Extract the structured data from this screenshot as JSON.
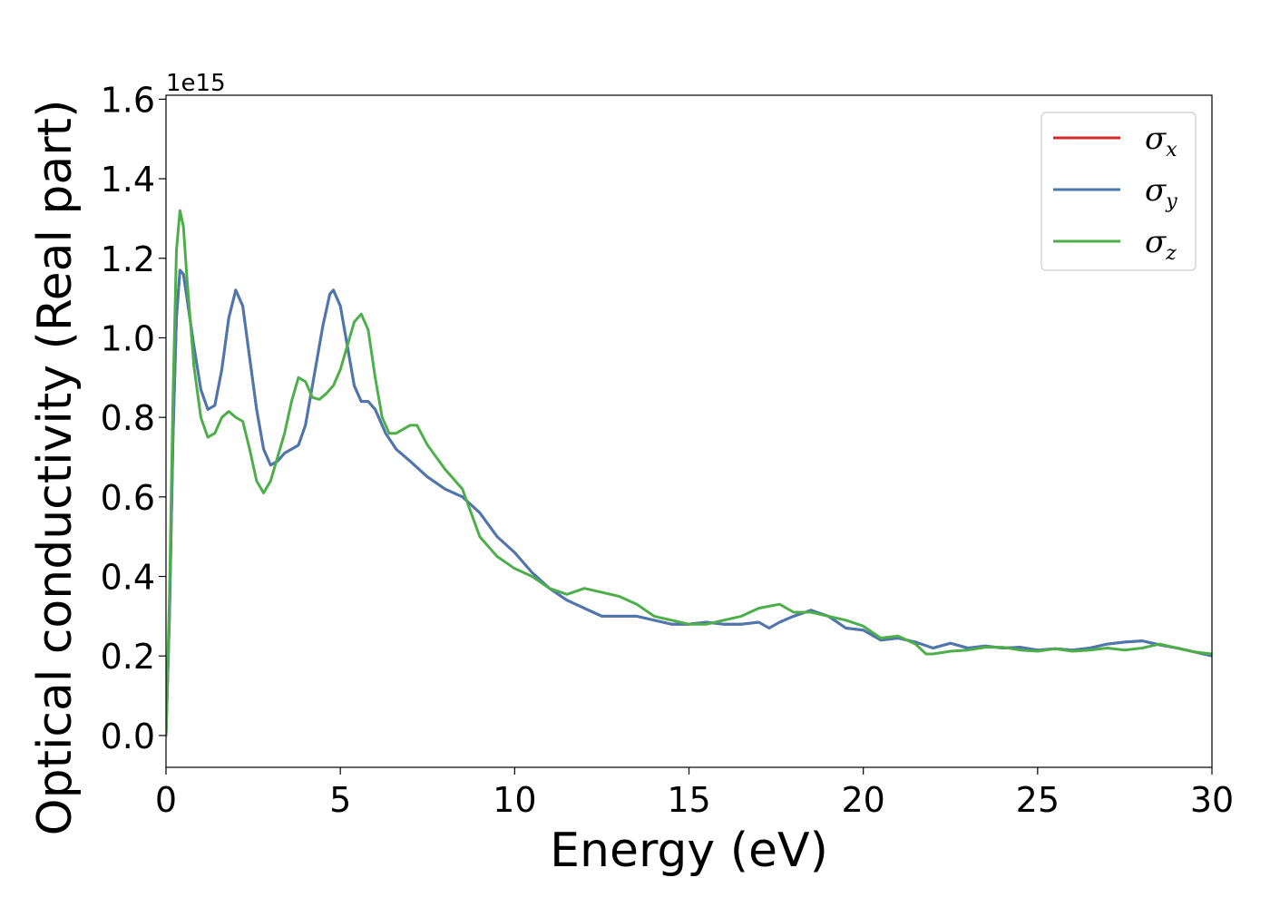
{
  "chart_data": {
    "type": "line",
    "xlabel": "Energy (eV)",
    "ylabel": "Optical conductivity (Real part)",
    "y_offset_label": "1e15",
    "xlim": [
      0,
      30
    ],
    "ylim": [
      -0.08,
      1.61
    ],
    "x_ticks": [
      0,
      5,
      10,
      15,
      20,
      25,
      30
    ],
    "y_ticks": [
      0.0,
      0.2,
      0.4,
      0.6,
      0.8,
      1.0,
      1.2,
      1.4,
      1.6
    ],
    "y_tick_labels": [
      "0.0",
      "0.2",
      "0.4",
      "0.6",
      "0.8",
      "1.0",
      "1.2",
      "1.4",
      "1.6"
    ],
    "grid": false,
    "legend_position": "top-right",
    "series": [
      {
        "name": "σ_x",
        "legend_base": "σ",
        "legend_sub": "x",
        "color": "#d62728",
        "points": [
          [
            0,
            0.0
          ],
          [
            0.1,
            0.3
          ],
          [
            0.2,
            0.75
          ],
          [
            0.3,
            1.05
          ],
          [
            0.4,
            1.17
          ],
          [
            0.5,
            1.16
          ],
          [
            0.6,
            1.1
          ],
          [
            0.8,
            0.98
          ],
          [
            1.0,
            0.87
          ],
          [
            1.2,
            0.82
          ],
          [
            1.4,
            0.83
          ],
          [
            1.6,
            0.92
          ],
          [
            1.8,
            1.05
          ],
          [
            2.0,
            1.12
          ],
          [
            2.2,
            1.08
          ],
          [
            2.4,
            0.95
          ],
          [
            2.6,
            0.82
          ],
          [
            2.8,
            0.72
          ],
          [
            3.0,
            0.68
          ],
          [
            3.2,
            0.69
          ],
          [
            3.4,
            0.71
          ],
          [
            3.6,
            0.72
          ],
          [
            3.8,
            0.73
          ],
          [
            4.0,
            0.78
          ],
          [
            4.2,
            0.88
          ],
          [
            4.5,
            1.03
          ],
          [
            4.7,
            1.11
          ],
          [
            4.8,
            1.12
          ],
          [
            5.0,
            1.08
          ],
          [
            5.2,
            0.98
          ],
          [
            5.4,
            0.88
          ],
          [
            5.6,
            0.84
          ],
          [
            5.8,
            0.84
          ],
          [
            6.0,
            0.82
          ],
          [
            6.3,
            0.76
          ],
          [
            6.6,
            0.72
          ],
          [
            7.0,
            0.69
          ],
          [
            7.5,
            0.65
          ],
          [
            8.0,
            0.62
          ],
          [
            8.5,
            0.6
          ],
          [
            9.0,
            0.56
          ],
          [
            9.5,
            0.5
          ],
          [
            10.0,
            0.46
          ],
          [
            10.5,
            0.41
          ],
          [
            11.0,
            0.37
          ],
          [
            11.5,
            0.34
          ],
          [
            12.0,
            0.32
          ],
          [
            12.5,
            0.3
          ],
          [
            13.0,
            0.3
          ],
          [
            13.5,
            0.3
          ],
          [
            14.0,
            0.29
          ],
          [
            14.5,
            0.28
          ],
          [
            15.0,
            0.28
          ],
          [
            15.5,
            0.285
          ],
          [
            16.0,
            0.28
          ],
          [
            16.5,
            0.28
          ],
          [
            17.0,
            0.285
          ],
          [
            17.3,
            0.27
          ],
          [
            17.6,
            0.285
          ],
          [
            18.0,
            0.3
          ],
          [
            18.5,
            0.315
          ],
          [
            19.0,
            0.3
          ],
          [
            19.5,
            0.27
          ],
          [
            20.0,
            0.265
          ],
          [
            20.5,
            0.24
          ],
          [
            21.0,
            0.245
          ],
          [
            21.5,
            0.235
          ],
          [
            22.0,
            0.22
          ],
          [
            22.5,
            0.232
          ],
          [
            23.0,
            0.22
          ],
          [
            23.5,
            0.225
          ],
          [
            24.0,
            0.22
          ],
          [
            24.5,
            0.222
          ],
          [
            25.0,
            0.215
          ],
          [
            25.5,
            0.218
          ],
          [
            26.0,
            0.215
          ],
          [
            26.5,
            0.22
          ],
          [
            27.0,
            0.23
          ],
          [
            27.5,
            0.235
          ],
          [
            28.0,
            0.238
          ],
          [
            28.5,
            0.228
          ],
          [
            29.0,
            0.22
          ],
          [
            29.5,
            0.21
          ],
          [
            30.0,
            0.2
          ]
        ]
      },
      {
        "name": "σ_y",
        "legend_base": "σ",
        "legend_sub": "y",
        "color": "#4a78b0",
        "points": [
          [
            0,
            0.0
          ],
          [
            0.1,
            0.3
          ],
          [
            0.2,
            0.75
          ],
          [
            0.3,
            1.05
          ],
          [
            0.4,
            1.17
          ],
          [
            0.5,
            1.16
          ],
          [
            0.6,
            1.1
          ],
          [
            0.8,
            0.98
          ],
          [
            1.0,
            0.87
          ],
          [
            1.2,
            0.82
          ],
          [
            1.4,
            0.83
          ],
          [
            1.6,
            0.92
          ],
          [
            1.8,
            1.05
          ],
          [
            2.0,
            1.12
          ],
          [
            2.2,
            1.08
          ],
          [
            2.4,
            0.95
          ],
          [
            2.6,
            0.82
          ],
          [
            2.8,
            0.72
          ],
          [
            3.0,
            0.68
          ],
          [
            3.2,
            0.69
          ],
          [
            3.4,
            0.71
          ],
          [
            3.6,
            0.72
          ],
          [
            3.8,
            0.73
          ],
          [
            4.0,
            0.78
          ],
          [
            4.2,
            0.88
          ],
          [
            4.5,
            1.03
          ],
          [
            4.7,
            1.11
          ],
          [
            4.8,
            1.12
          ],
          [
            5.0,
            1.08
          ],
          [
            5.2,
            0.98
          ],
          [
            5.4,
            0.88
          ],
          [
            5.6,
            0.84
          ],
          [
            5.8,
            0.84
          ],
          [
            6.0,
            0.82
          ],
          [
            6.3,
            0.76
          ],
          [
            6.6,
            0.72
          ],
          [
            7.0,
            0.69
          ],
          [
            7.5,
            0.65
          ],
          [
            8.0,
            0.62
          ],
          [
            8.5,
            0.6
          ],
          [
            9.0,
            0.56
          ],
          [
            9.5,
            0.5
          ],
          [
            10.0,
            0.46
          ],
          [
            10.5,
            0.41
          ],
          [
            11.0,
            0.37
          ],
          [
            11.5,
            0.34
          ],
          [
            12.0,
            0.32
          ],
          [
            12.5,
            0.3
          ],
          [
            13.0,
            0.3
          ],
          [
            13.5,
            0.3
          ],
          [
            14.0,
            0.29
          ],
          [
            14.5,
            0.28
          ],
          [
            15.0,
            0.28
          ],
          [
            15.5,
            0.285
          ],
          [
            16.0,
            0.28
          ],
          [
            16.5,
            0.28
          ],
          [
            17.0,
            0.285
          ],
          [
            17.3,
            0.27
          ],
          [
            17.6,
            0.285
          ],
          [
            18.0,
            0.3
          ],
          [
            18.5,
            0.315
          ],
          [
            19.0,
            0.3
          ],
          [
            19.5,
            0.27
          ],
          [
            20.0,
            0.265
          ],
          [
            20.5,
            0.24
          ],
          [
            21.0,
            0.245
          ],
          [
            21.5,
            0.235
          ],
          [
            22.0,
            0.22
          ],
          [
            22.5,
            0.232
          ],
          [
            23.0,
            0.22
          ],
          [
            23.5,
            0.225
          ],
          [
            24.0,
            0.22
          ],
          [
            24.5,
            0.222
          ],
          [
            25.0,
            0.215
          ],
          [
            25.5,
            0.218
          ],
          [
            26.0,
            0.215
          ],
          [
            26.5,
            0.22
          ],
          [
            27.0,
            0.23
          ],
          [
            27.5,
            0.235
          ],
          [
            28.0,
            0.238
          ],
          [
            28.5,
            0.228
          ],
          [
            29.0,
            0.22
          ],
          [
            29.5,
            0.21
          ],
          [
            30.0,
            0.2
          ]
        ]
      },
      {
        "name": "σ_z",
        "legend_base": "σ",
        "legend_sub": "z",
        "color": "#4daf4a",
        "points": [
          [
            0,
            0.0
          ],
          [
            0.1,
            0.35
          ],
          [
            0.2,
            0.85
          ],
          [
            0.3,
            1.22
          ],
          [
            0.4,
            1.32
          ],
          [
            0.5,
            1.28
          ],
          [
            0.6,
            1.15
          ],
          [
            0.8,
            0.93
          ],
          [
            1.0,
            0.8
          ],
          [
            1.2,
            0.75
          ],
          [
            1.4,
            0.76
          ],
          [
            1.6,
            0.8
          ],
          [
            1.8,
            0.815
          ],
          [
            2.0,
            0.8
          ],
          [
            2.2,
            0.79
          ],
          [
            2.4,
            0.72
          ],
          [
            2.6,
            0.64
          ],
          [
            2.8,
            0.61
          ],
          [
            3.0,
            0.64
          ],
          [
            3.2,
            0.7
          ],
          [
            3.4,
            0.76
          ],
          [
            3.6,
            0.84
          ],
          [
            3.8,
            0.9
          ],
          [
            4.0,
            0.89
          ],
          [
            4.2,
            0.85
          ],
          [
            4.4,
            0.845
          ],
          [
            4.6,
            0.86
          ],
          [
            4.8,
            0.88
          ],
          [
            5.0,
            0.92
          ],
          [
            5.2,
            0.98
          ],
          [
            5.4,
            1.04
          ],
          [
            5.6,
            1.06
          ],
          [
            5.8,
            1.02
          ],
          [
            6.0,
            0.9
          ],
          [
            6.2,
            0.8
          ],
          [
            6.4,
            0.76
          ],
          [
            6.6,
            0.76
          ],
          [
            6.8,
            0.77
          ],
          [
            7.0,
            0.78
          ],
          [
            7.2,
            0.78
          ],
          [
            7.5,
            0.73
          ],
          [
            8.0,
            0.67
          ],
          [
            8.5,
            0.62
          ],
          [
            9.0,
            0.5
          ],
          [
            9.5,
            0.45
          ],
          [
            10.0,
            0.42
          ],
          [
            10.5,
            0.4
          ],
          [
            11.0,
            0.37
          ],
          [
            11.5,
            0.355
          ],
          [
            12.0,
            0.37
          ],
          [
            12.5,
            0.36
          ],
          [
            13.0,
            0.35
          ],
          [
            13.5,
            0.33
          ],
          [
            14.0,
            0.3
          ],
          [
            14.5,
            0.29
          ],
          [
            15.0,
            0.28
          ],
          [
            15.5,
            0.28
          ],
          [
            16.0,
            0.29
          ],
          [
            16.5,
            0.3
          ],
          [
            17.0,
            0.32
          ],
          [
            17.3,
            0.325
          ],
          [
            17.6,
            0.33
          ],
          [
            18.0,
            0.31
          ],
          [
            18.5,
            0.31
          ],
          [
            19.0,
            0.3
          ],
          [
            19.5,
            0.29
          ],
          [
            20.0,
            0.275
          ],
          [
            20.5,
            0.245
          ],
          [
            21.0,
            0.25
          ],
          [
            21.5,
            0.23
          ],
          [
            21.8,
            0.205
          ],
          [
            22.0,
            0.205
          ],
          [
            22.5,
            0.212
          ],
          [
            23.0,
            0.215
          ],
          [
            23.5,
            0.222
          ],
          [
            24.0,
            0.222
          ],
          [
            24.5,
            0.215
          ],
          [
            25.0,
            0.212
          ],
          [
            25.5,
            0.218
          ],
          [
            26.0,
            0.212
          ],
          [
            26.5,
            0.215
          ],
          [
            27.0,
            0.22
          ],
          [
            27.5,
            0.215
          ],
          [
            28.0,
            0.22
          ],
          [
            28.5,
            0.23
          ],
          [
            29.0,
            0.22
          ],
          [
            29.5,
            0.21
          ],
          [
            30.0,
            0.205
          ]
        ]
      }
    ]
  }
}
